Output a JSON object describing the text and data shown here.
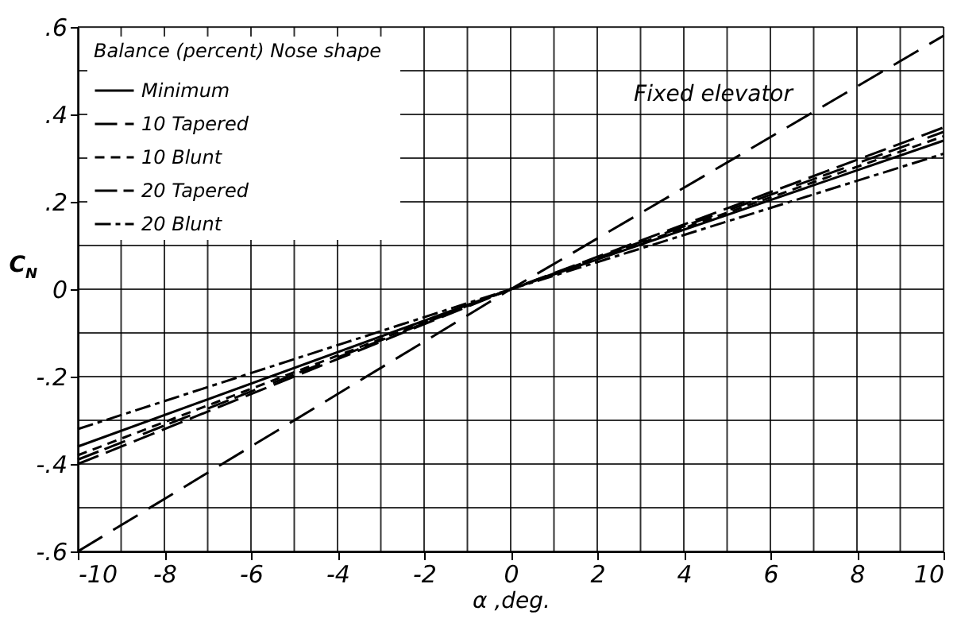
{
  "chart_data": {
    "type": "line",
    "xlabel": "α ,deg.",
    "ylabel": "C$_{N}$",
    "legend_title": "Balance (percent)   Nose shape",
    "legend": "top left",
    "grid": true,
    "marker": "none",
    "xlim": [
      -10,
      10
    ],
    "ylim": [
      -0.6,
      0.6
    ],
    "xticks": [
      -10,
      {
        "value": -9,
        "label": null
      },
      -8,
      {
        "value": -7,
        "label": null
      },
      -6,
      {
        "value": -5,
        "label": null
      },
      -4,
      {
        "value": -3,
        "label": null
      },
      -2,
      {
        "value": -1,
        "label": null
      },
      0,
      {
        "value": 1,
        "label": null
      },
      2,
      {
        "value": 3,
        "label": null
      },
      4,
      {
        "value": 5,
        "label": null
      },
      6,
      {
        "value": 7,
        "label": null
      },
      8,
      {
        "value": 9,
        "label": null
      },
      10
    ],
    "yticks": [
      {
        "value": -0.6,
        "label": "-.6"
      },
      {
        "value": -0.5,
        "label": null
      },
      {
        "value": -0.4,
        "label": "-.4"
      },
      {
        "value": -0.3,
        "label": null
      },
      {
        "value": -0.2,
        "label": "-.2"
      },
      {
        "value": -0.1,
        "label": null
      },
      0,
      {
        "value": 0.1,
        "label": null
      },
      {
        "value": 0.2,
        "label": ".2"
      },
      {
        "value": 0.3,
        "label": null
      },
      {
        "value": 0.4,
        "label": ".4"
      },
      {
        "value": 0.5,
        "label": null
      },
      {
        "value": 0.6,
        "label": ".6"
      }
    ],
    "x": [
      -10,
      0,
      10
    ],
    "series": [
      {
        "name": "Minimum",
        "color": "#000000",
        "line_style": "solid",
        "values": [
          -0.36,
          0,
          0.34
        ]
      },
      {
        "name": "10   Tapered",
        "color": "#000000",
        "line_style": "dashed",
        "values": [
          -0.4,
          0,
          0.37
        ]
      },
      {
        "name": "10   Blunt",
        "color": "#000000",
        "line_style": "dashed",
        "values": [
          -0.38,
          0,
          0.35
        ]
      },
      {
        "name": "20   Tapered",
        "color": "#000000",
        "line_style": "dashed",
        "values": [
          -0.39,
          0,
          0.36
        ]
      },
      {
        "name": "20   Blunt",
        "color": "#000000",
        "line_style": "dotted",
        "values": [
          -0.32,
          0,
          0.31
        ]
      },
      {
        "name": "Fixed elevator",
        "color": "#000000",
        "line_style": "dashed",
        "values": [
          -0.6,
          0,
          0.58
        ]
      }
    ]
  }
}
